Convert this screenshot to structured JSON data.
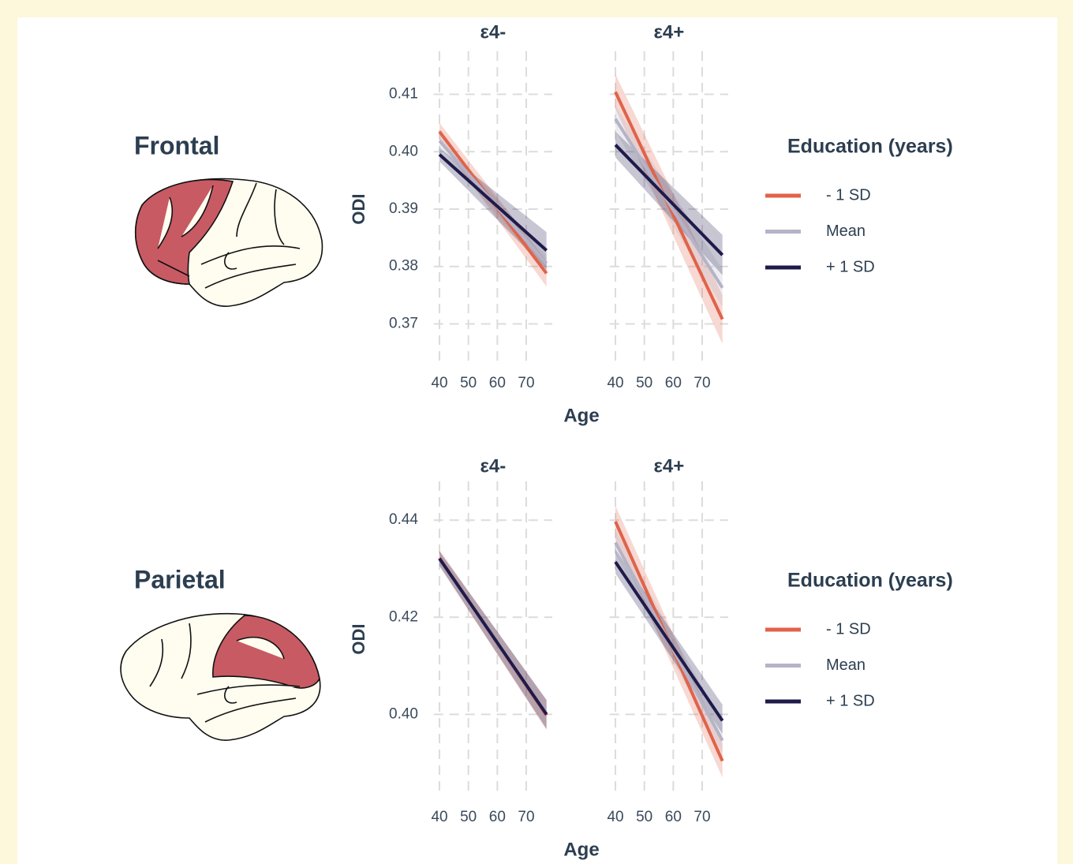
{
  "chart_data": [
    {
      "type": "line",
      "region": "Frontal",
      "ylabel": "ODI",
      "xlabel": "Age",
      "xlim": [
        38,
        79
      ],
      "xticks": [
        40,
        50,
        60,
        70
      ],
      "ylim": [
        0.3625,
        0.4175
      ],
      "yticks": [
        0.37,
        0.38,
        0.39,
        {
          "value": 0.4,
          "label": "0.40"
        },
        0.41
      ],
      "grid": true,
      "legend_title": "Education (years)",
      "series": [
        {
          "name": "- 1 SD",
          "color": "#e0634a"
        },
        {
          "name": "Mean",
          "color": "#b5b3c6"
        },
        {
          "name": "+ 1 SD",
          "color": "#1e1b4b"
        }
      ],
      "x": [
        40,
        77
      ],
      "facets": [
        {
          "title": "ε4-",
          "series": [
            {
              "values": [
                0.4035,
                0.3788
              ],
              "lower": [
                0.402,
                0.3765
              ],
              "upper": [
                0.405,
                0.381
              ]
            },
            {
              "values": [
                0.4019,
                0.3805
              ],
              "lower": [
                0.4008,
                0.379
              ],
              "upper": [
                0.403,
                0.382
              ]
            },
            {
              "values": [
                0.3995,
                0.3828
              ],
              "lower": [
                0.3983,
                0.3795
              ],
              "upper": [
                0.4007,
                0.386
              ]
            }
          ]
        },
        {
          "title": "ε4+",
          "series": [
            {
              "values": [
                0.4104,
                0.3708
              ],
              "lower": [
                0.4075,
                0.3665
              ],
              "upper": [
                0.4135,
                0.375
              ]
            },
            {
              "values": [
                0.4057,
                0.3763
              ],
              "lower": [
                0.4035,
                0.373
              ],
              "upper": [
                0.408,
                0.3795
              ]
            },
            {
              "values": [
                0.4012,
                0.382
              ],
              "lower": [
                0.399,
                0.3785
              ],
              "upper": [
                0.4035,
                0.3855
              ]
            }
          ]
        }
      ]
    },
    {
      "type": "line",
      "region": "Parietal",
      "ylabel": "ODI",
      "xlabel": "Age",
      "xlim": [
        38,
        79
      ],
      "xticks": [
        40,
        50,
        60,
        70
      ],
      "ylim": [
        0.383,
        0.448
      ],
      "yticks": [
        {
          "value": 0.4,
          "label": "0.40"
        },
        0.42,
        0.44
      ],
      "grid": true,
      "legend_title": "Education (years)",
      "series": [
        {
          "name": "- 1 SD",
          "color": "#e0634a"
        },
        {
          "name": "Mean",
          "color": "#b5b3c6"
        },
        {
          "name": "+ 1 SD",
          "color": "#1e1b4b"
        }
      ],
      "x": [
        40,
        77
      ],
      "facets": [
        {
          "title": "ε4-",
          "series": [
            {
              "values": [
                0.4322,
                0.3998
              ],
              "lower": [
                0.4305,
                0.3968
              ],
              "upper": [
                0.4338,
                0.4028
              ]
            },
            {
              "values": [
                0.432,
                0.4001
              ],
              "lower": [
                0.4305,
                0.3972
              ],
              "upper": [
                0.4335,
                0.403
              ]
            },
            {
              "values": [
                0.4321,
                0.4
              ],
              "lower": [
                0.4307,
                0.397
              ],
              "upper": [
                0.4336,
                0.403
              ]
            }
          ]
        },
        {
          "title": "ε4+",
          "series": [
            {
              "values": [
                0.4397,
                0.3904
              ],
              "lower": [
                0.436,
                0.387
              ],
              "upper": [
                0.443,
                0.394
              ]
            },
            {
              "values": [
                0.4354,
                0.3946
              ],
              "lower": [
                0.433,
                0.392
              ],
              "upper": [
                0.438,
                0.398
              ]
            },
            {
              "values": [
                0.4314,
                0.3987
              ],
              "lower": [
                0.429,
                0.396
              ],
              "upper": [
                0.434,
                0.402
              ]
            }
          ]
        }
      ]
    }
  ]
}
